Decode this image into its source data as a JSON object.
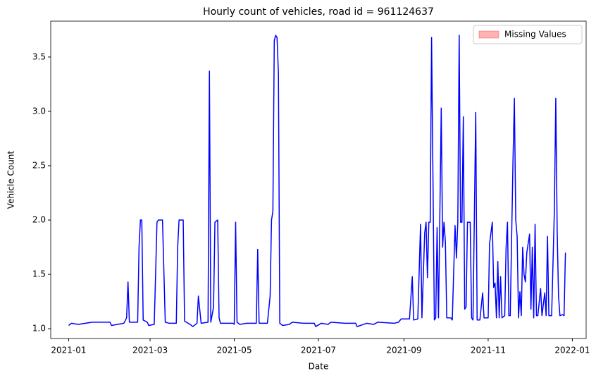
{
  "chart_data": {
    "type": "line",
    "title": "Hourly count of vehicles, road id = 961124637",
    "x_label": "Date",
    "y_label": "Vehicle Count",
    "x": [
      "2021-01-01",
      "2021-01-03",
      "2021-01-08",
      "2021-01-18",
      "2021-01-31",
      "2021-02-01",
      "2021-02-10",
      "2021-02-12",
      "2021-02-13",
      "2021-02-14",
      "2021-02-20",
      "2021-02-21",
      "2021-02-22",
      "2021-02-23",
      "2021-02-24",
      "2021-02-27",
      "2021-02-28",
      "2021-03-04",
      "2021-03-05",
      "2021-03-06",
      "2021-03-07",
      "2021-03-10",
      "2021-03-12",
      "2021-03-15",
      "2021-03-20",
      "2021-03-21",
      "2021-03-22",
      "2021-03-25",
      "2021-03-26",
      "2021-03-30",
      "2021-04-01",
      "2021-04-04",
      "2021-04-05",
      "2021-04-07",
      "2021-04-12",
      "2021-04-13",
      "2021-04-14",
      "2021-04-16",
      "2021-04-17",
      "2021-04-19",
      "2021-04-20",
      "2021-04-21",
      "2021-04-30",
      "2021-05-01",
      "2021-05-02",
      "2021-05-03",
      "2021-05-05",
      "2021-05-10",
      "2021-05-17",
      "2021-05-18",
      "2021-05-19",
      "2021-05-25",
      "2021-05-27",
      "2021-05-28",
      "2021-05-29",
      "2021-05-30",
      "2021-05-31",
      "2021-06-01",
      "2021-06-02",
      "2021-06-03",
      "2021-06-05",
      "2021-06-10",
      "2021-06-12",
      "2021-06-20",
      "2021-06-28",
      "2021-06-29",
      "2021-07-03",
      "2021-07-08",
      "2021-07-10",
      "2021-07-20",
      "2021-07-28",
      "2021-07-29",
      "2021-08-05",
      "2021-08-10",
      "2021-08-13",
      "2021-08-25",
      "2021-08-28",
      "2021-08-30",
      "2021-09-04",
      "2021-09-05",
      "2021-09-07",
      "2021-09-08",
      "2021-09-11",
      "2021-09-13",
      "2021-09-14",
      "2021-09-16",
      "2021-09-17",
      "2021-09-18",
      "2021-09-19",
      "2021-09-20",
      "2021-09-21",
      "2021-09-23",
      "2021-09-24",
      "2021-09-25",
      "2021-09-26",
      "2021-09-28",
      "2021-09-29",
      "2021-09-30",
      "2021-10-01",
      "2021-10-02",
      "2021-10-05",
      "2021-10-06",
      "2021-10-08",
      "2021-10-09",
      "2021-10-10",
      "2021-10-11",
      "2021-10-12",
      "2021-10-13",
      "2021-10-14",
      "2021-10-15",
      "2021-10-16",
      "2021-10-17",
      "2021-10-19",
      "2021-10-20",
      "2021-10-21",
      "2021-10-23",
      "2021-10-24",
      "2021-10-26",
      "2021-10-28",
      "2021-10-29",
      "2021-11-01",
      "2021-11-02",
      "2021-11-04",
      "2021-11-05",
      "2021-11-06",
      "2021-11-07",
      "2021-11-08",
      "2021-11-09",
      "2021-11-10",
      "2021-11-11",
      "2021-11-13",
      "2021-11-14",
      "2021-11-15",
      "2021-11-16",
      "2021-11-17",
      "2021-11-19",
      "2021-11-20",
      "2021-11-21",
      "2021-11-22",
      "2021-11-23",
      "2021-11-24",
      "2021-11-25",
      "2021-11-26",
      "2021-11-27",
      "2021-11-28",
      "2021-11-29",
      "2021-12-01",
      "2021-12-02",
      "2021-12-03",
      "2021-12-04",
      "2021-12-05",
      "2021-12-06",
      "2021-12-07",
      "2021-12-09",
      "2021-12-10",
      "2021-12-12",
      "2021-12-13",
      "2021-12-14",
      "2021-12-15",
      "2021-12-17",
      "2021-12-19",
      "2021-12-20",
      "2021-12-21",
      "2021-12-22",
      "2021-12-23",
      "2021-12-25",
      "2021-12-26",
      "2021-12-27"
    ],
    "series": [
      {
        "color": "#0000ff",
        "values": [
          1.03,
          1.05,
          1.04,
          1.06,
          1.06,
          1.03,
          1.05,
          1.1,
          1.43,
          1.06,
          1.06,
          1.75,
          2.0,
          2.0,
          1.08,
          1.06,
          1.03,
          1.04,
          1.5,
          1.98,
          2.0,
          2.0,
          1.06,
          1.05,
          1.05,
          1.75,
          2.0,
          2.0,
          1.07,
          1.04,
          1.02,
          1.05,
          1.3,
          1.05,
          1.06,
          3.37,
          1.06,
          1.2,
          1.98,
          2.0,
          1.1,
          1.05,
          1.05,
          1.04,
          1.98,
          1.06,
          1.04,
          1.05,
          1.05,
          1.73,
          1.05,
          1.05,
          1.3,
          2.0,
          2.08,
          3.65,
          3.7,
          3.68,
          3.35,
          1.05,
          1.03,
          1.04,
          1.06,
          1.05,
          1.05,
          1.02,
          1.05,
          1.04,
          1.06,
          1.05,
          1.05,
          1.02,
          1.05,
          1.04,
          1.06,
          1.05,
          1.06,
          1.09,
          1.09,
          1.09,
          1.48,
          1.08,
          1.09,
          1.96,
          1.1,
          1.88,
          1.98,
          1.47,
          1.98,
          1.98,
          3.68,
          1.08,
          1.1,
          1.93,
          1.1,
          3.03,
          1.75,
          1.98,
          1.8,
          1.1,
          1.1,
          1.08,
          1.95,
          1.65,
          1.98,
          3.7,
          1.98,
          1.98,
          2.95,
          1.18,
          1.2,
          1.98,
          1.98,
          1.1,
          1.08,
          2.99,
          1.08,
          1.08,
          1.33,
          1.1,
          1.1,
          1.78,
          1.98,
          1.38,
          1.42,
          1.1,
          1.62,
          1.1,
          1.48,
          1.1,
          1.12,
          1.75,
          1.98,
          1.12,
          1.12,
          2.55,
          3.12,
          2.0,
          1.85,
          1.1,
          1.34,
          1.12,
          1.75,
          1.5,
          1.43,
          1.7,
          1.87,
          1.18,
          1.75,
          1.1,
          1.96,
          1.12,
          1.12,
          1.37,
          1.12,
          1.33,
          1.12,
          1.85,
          1.12,
          1.12,
          2.1,
          3.12,
          1.9,
          1.3,
          1.12,
          1.13,
          1.12,
          1.7
        ]
      }
    ],
    "missing_values": {
      "name": "Missing Values",
      "color": "#ff0000"
    },
    "legend": "upper right",
    "xlim": [
      "2020-12-19",
      "2022-01-11"
    ],
    "xticks": [
      {
        "value": "2021-01-01",
        "label": "2021-01"
      },
      {
        "value": "2021-03-01",
        "label": "2021-03"
      },
      {
        "value": "2021-05-01",
        "label": "2021-05"
      },
      {
        "value": "2021-07-01",
        "label": "2021-07"
      },
      {
        "value": "2021-09-01",
        "label": "2021-09"
      },
      {
        "value": "2021-11-01",
        "label": "2021-11"
      },
      {
        "value": "2022-01-01",
        "label": "2022-01"
      }
    ],
    "ylim": [
      0.91,
      3.83
    ],
    "yticks": [
      {
        "value": 1.0,
        "label": "1.0"
      },
      1.5,
      {
        "value": 2.0,
        "label": "2.0"
      },
      2.5,
      {
        "value": 3.0,
        "label": "3.0"
      },
      3.5
    ],
    "grid": false
  }
}
